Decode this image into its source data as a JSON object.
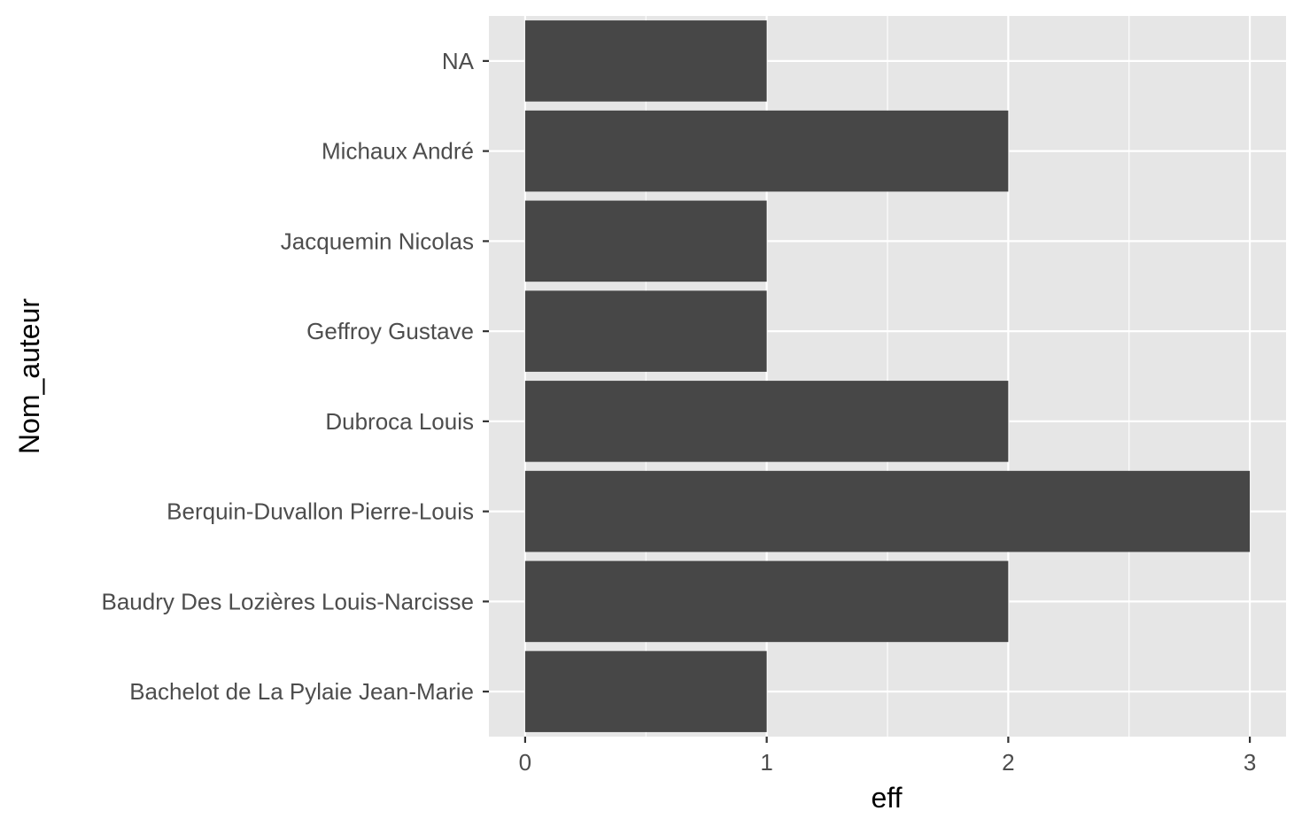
{
  "chart_data": {
    "type": "bar",
    "orientation": "horizontal",
    "title": "",
    "xlabel": "eff",
    "ylabel": "Nom_auteur",
    "categories": [
      "Bachelot de La Pylaie Jean-Marie",
      "Baudry Des Lozières Louis-Narcisse",
      "Berquin-Duvallon Pierre-Louis",
      "Dubroca Louis",
      "Geffroy Gustave",
      "Jacquemin Nicolas",
      "Michaux André",
      "NA"
    ],
    "values": [
      1,
      2,
      3,
      2,
      1,
      1,
      2,
      1
    ],
    "xlim": [
      -0.15,
      3.15
    ],
    "x_ticks": [
      0,
      1,
      2,
      3
    ],
    "x_tick_labels": [
      "0",
      "1",
      "2",
      "3"
    ],
    "grid": true,
    "legend": "none",
    "colors": {
      "bar": "#474747",
      "panel": "#e6e6e6",
      "grid": "#ffffff",
      "tick_text": "#4d4d4d",
      "axis_title": "#000000",
      "tick_mark": "#333333"
    }
  }
}
